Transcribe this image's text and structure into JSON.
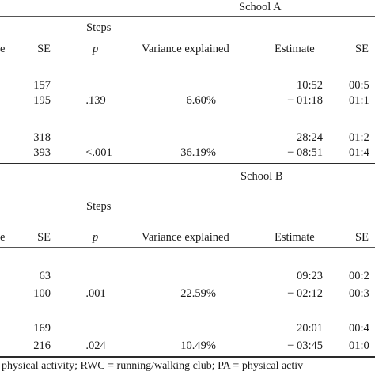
{
  "school_a": {
    "title": "School A",
    "steps_header": "Steps",
    "cols": {
      "e": "e",
      "se": "SE",
      "p": "p",
      "variance": "Variance explained",
      "estimate": "Estimate",
      "se2": "SE"
    },
    "rows": [
      {
        "se": "157",
        "p": "",
        "variance": "",
        "estimate": "10:52",
        "se2": "00:5"
      },
      {
        "se": "195",
        "p": ".139",
        "variance": "6.60%",
        "estimate": "− 01:18",
        "se2": "01:1"
      },
      {
        "se": "318",
        "p": "",
        "variance": "",
        "estimate": "28:24",
        "se2": "01:2"
      },
      {
        "se": "393",
        "p": "<.001",
        "variance": "36.19%",
        "estimate": "− 08:51",
        "se2": "01:4"
      }
    ]
  },
  "school_b": {
    "title": "School B",
    "steps_header": "Steps",
    "cols": {
      "e": "e",
      "se": "SE",
      "p": "p",
      "variance": "Variance explained",
      "estimate": "Estimate",
      "se2": "SE"
    },
    "rows": [
      {
        "se": "63",
        "p": "",
        "variance": "",
        "estimate": "09:23",
        "se2": "00:2"
      },
      {
        "se": "100",
        "p": ".001",
        "variance": "22.59%",
        "estimate": "− 02:12",
        "se2": "00:3"
      },
      {
        "se": "169",
        "p": "",
        "variance": "",
        "estimate": "20:01",
        "se2": "00:4"
      },
      {
        "se": "216",
        "p": ".024",
        "variance": "10.49%",
        "estimate": "− 03:45",
        "se2": "01:0"
      }
    ]
  },
  "footnote": "physical activity; RWC = running/walking club; PA = physical activ"
}
